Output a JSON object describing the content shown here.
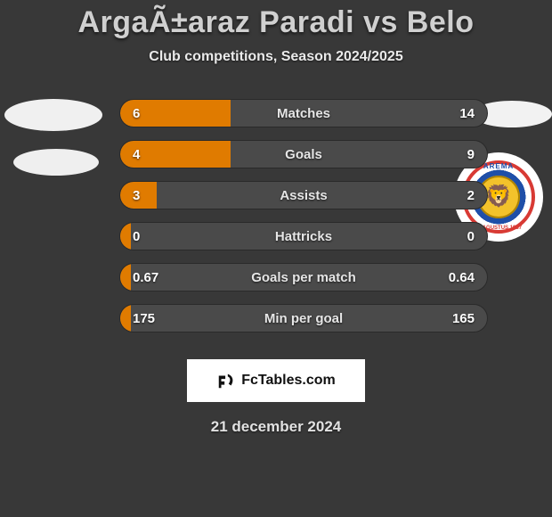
{
  "title": "ArgaÃ±araz Paradi vs Belo",
  "subtitle": "Club competitions, Season 2024/2025",
  "colors": {
    "background": "#383838",
    "bar_track": "#4a4a4a",
    "bar_fill": "#e07b00",
    "title_color": "#d0d0d0",
    "text_color": "#e6e6e6"
  },
  "crest": {
    "top_text": "AREMA",
    "bottom_text": "11 AGUSTUS 1987",
    "ring_color": "#d83a34",
    "inner_color": "#1f4fa8",
    "lion_color": "#f3c22b"
  },
  "bars": [
    {
      "label": "Matches",
      "left": "6",
      "right": "14",
      "fill_pct": 30
    },
    {
      "label": "Goals",
      "left": "4",
      "right": "9",
      "fill_pct": 30
    },
    {
      "label": "Assists",
      "left": "3",
      "right": "2",
      "fill_pct": 10
    },
    {
      "label": "Hattricks",
      "left": "0",
      "right": "0",
      "fill_pct": 3
    },
    {
      "label": "Goals per match",
      "left": "0.67",
      "right": "0.64",
      "fill_pct": 3
    },
    {
      "label": "Min per goal",
      "left": "175",
      "right": "165",
      "fill_pct": 3
    }
  ],
  "footer": {
    "brand": "FcTables.com"
  },
  "date": "21 december 2024"
}
